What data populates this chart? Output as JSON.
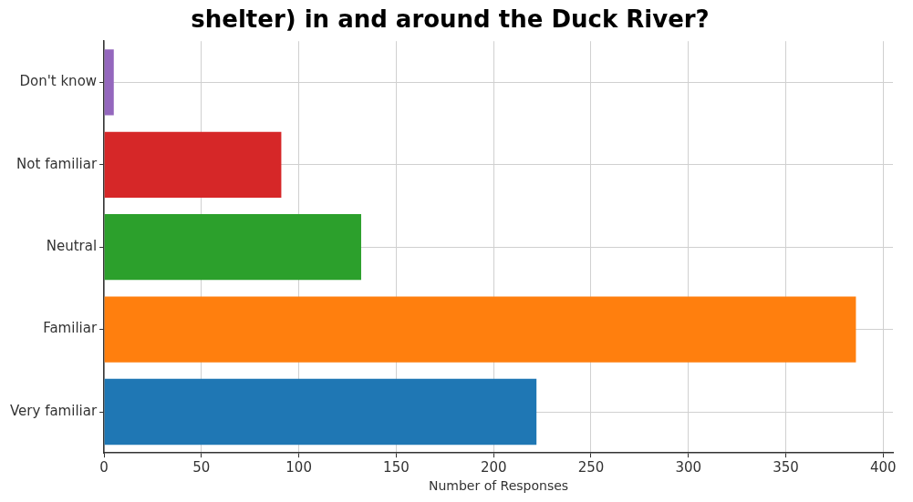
{
  "chart_data": {
    "type": "bar",
    "orientation": "horizontal",
    "title": "shelter) in and around the Duck River?",
    "xlabel": "Number of Responses",
    "categories": [
      "Don't know",
      "Not familiar",
      "Neutral",
      "Familiar",
      "Very familiar"
    ],
    "values": [
      5,
      91,
      132,
      386,
      222
    ],
    "colors": [
      "#9467bd",
      "#d62728",
      "#2ca02c",
      "#ff7f0e",
      "#1f77b4"
    ],
    "xlim": [
      0,
      405
    ],
    "xticks": [
      0,
      50,
      100,
      150,
      200,
      250,
      300,
      350,
      400
    ],
    "grid": true
  }
}
